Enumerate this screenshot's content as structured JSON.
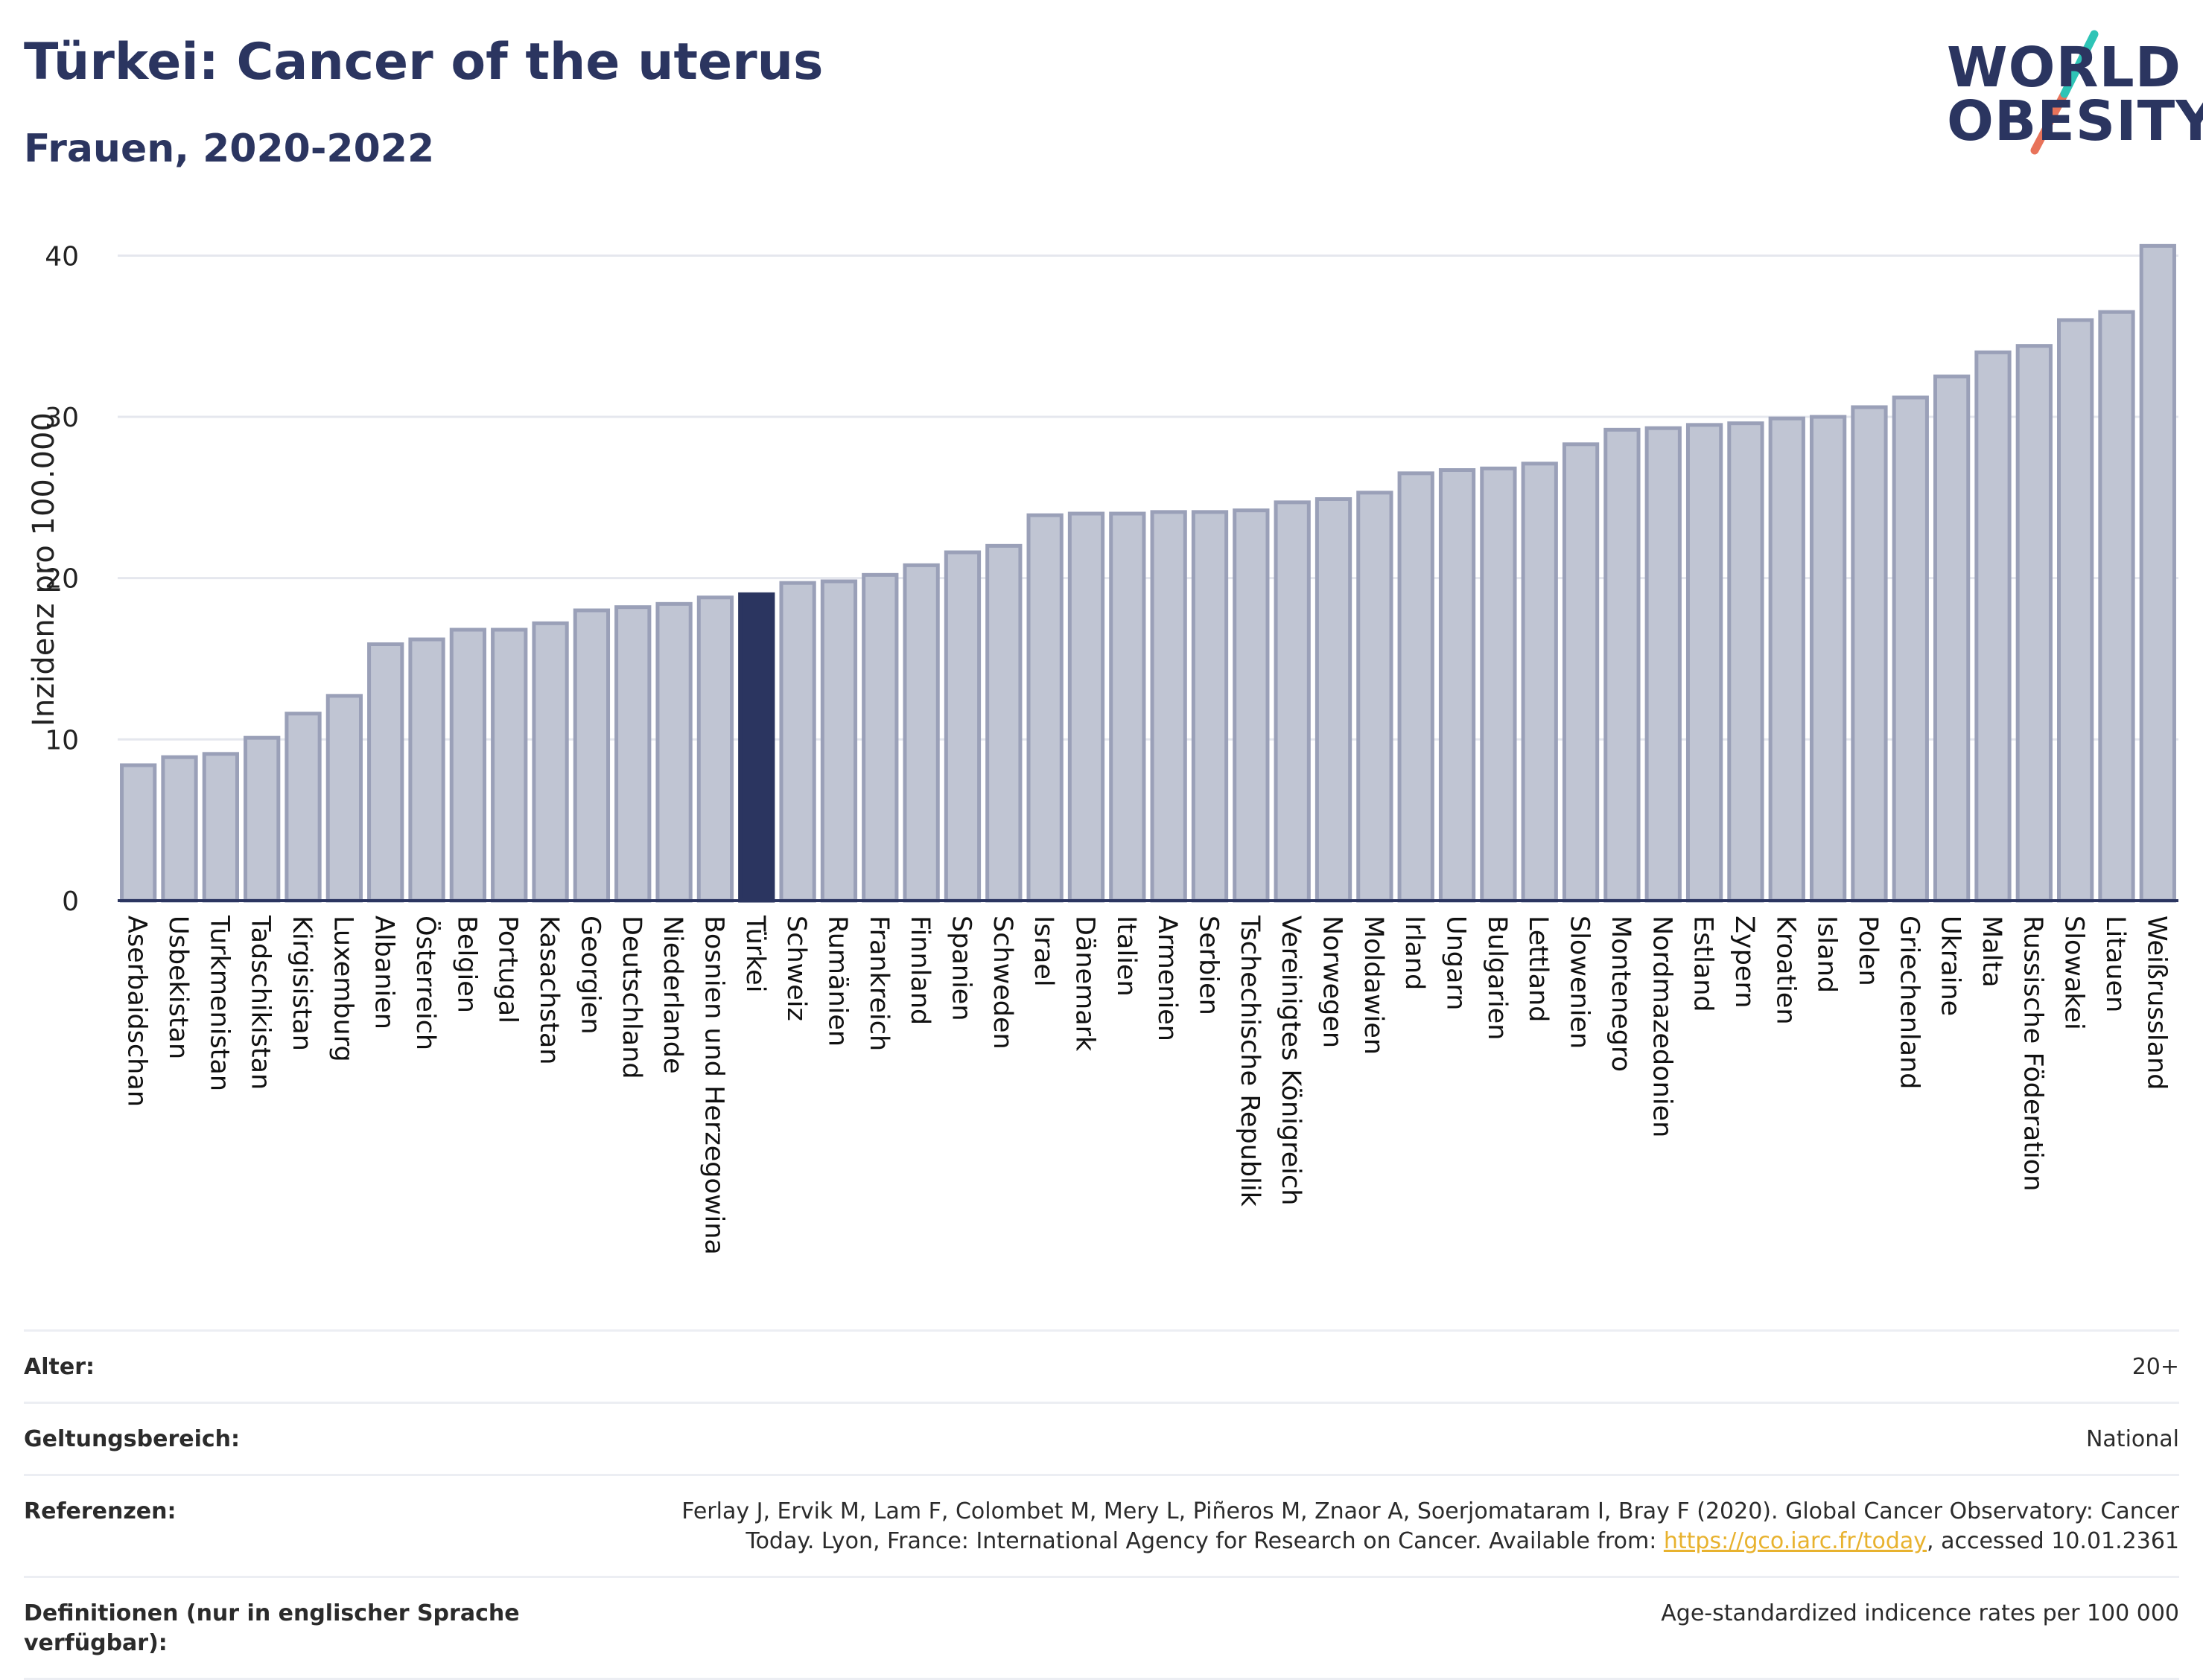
{
  "header": {
    "title": "Türkei: Cancer of the uterus",
    "subtitle": "Frauen, 2020-2022"
  },
  "logo": {
    "line1": "WORLD",
    "line2": "OBESITY",
    "slash_colors": [
      "#2ec4b6",
      "#e8735a"
    ]
  },
  "colors": {
    "bar": "#c0c5d3",
    "bar_border": "#9aa0b8",
    "highlight": "#2b3560",
    "grid": "#e5e7ee",
    "axis": "#2b3560"
  },
  "chart_data": {
    "type": "bar",
    "ylabel": "Inzidenz pro 100.000",
    "xlabel": "",
    "ylim": [
      0,
      42
    ],
    "yticks": [
      0,
      10,
      20,
      30,
      40
    ],
    "grid": true,
    "highlight": "Türkei",
    "categories": [
      "Aserbaidschan",
      "Usbekistan",
      "Turkmenistan",
      "Tadschikistan",
      "Kirgisistan",
      "Luxemburg",
      "Albanien",
      "Österreich",
      "Belgien",
      "Portugal",
      "Kasachstan",
      "Georgien",
      "Deutschland",
      "Niederlande",
      "Bosnien und Herzegowina",
      "Türkei",
      "Schweiz",
      "Rumänien",
      "Frankreich",
      "Finnland",
      "Spanien",
      "Schweden",
      "Israel",
      "Dänemark",
      "Italien",
      "Armenien",
      "Serbien",
      "Tschechische Republik",
      "Vereinigtes Königreich",
      "Norwegen",
      "Moldawien",
      "Irland",
      "Ungarn",
      "Bulgarien",
      "Lettland",
      "Slowenien",
      "Montenegro",
      "Nordmazedonien",
      "Estland",
      "Zypern",
      "Kroatien",
      "Island",
      "Polen",
      "Griechenland",
      "Ukraine",
      "Malta",
      "Russische Föderation",
      "Slowakei",
      "Litauen",
      "Weißrussland"
    ],
    "values": [
      8.4,
      8.9,
      9.1,
      10.1,
      11.6,
      12.7,
      15.9,
      16.2,
      16.8,
      16.8,
      17.2,
      18.0,
      18.2,
      18.4,
      18.8,
      19.0,
      19.7,
      19.8,
      20.2,
      20.8,
      21.6,
      22.0,
      23.9,
      24.0,
      24.0,
      24.1,
      24.1,
      24.2,
      24.7,
      24.9,
      25.3,
      26.5,
      26.7,
      26.8,
      27.1,
      28.3,
      29.2,
      29.3,
      29.5,
      29.6,
      29.9,
      30.0,
      30.6,
      31.2,
      32.5,
      34.0,
      34.4,
      36.0,
      36.5,
      40.6
    ]
  },
  "meta": {
    "age_label": "Alter:",
    "age_value": "20+",
    "scope_label": "Geltungsbereich:",
    "scope_value": "National",
    "ref_label": "Referenzen:",
    "ref_text_1": "Ferlay J, Ervik M, Lam F, Colombet M, Mery L, Piñeros M, Znaor A, Soerjomataram I, Bray F (2020). Global Cancer Observatory: Cancer",
    "ref_text_2": "Today. Lyon, France: International Agency for Research on Cancer. Available from: ",
    "ref_link": "https://gco.iarc.fr/today",
    "ref_text_3": ", accessed 10.01.2361",
    "def_label": "Definitionen (nur in englischer Sprache verfügbar):",
    "def_value": "Age-standardized indicence rates per 100 000"
  }
}
